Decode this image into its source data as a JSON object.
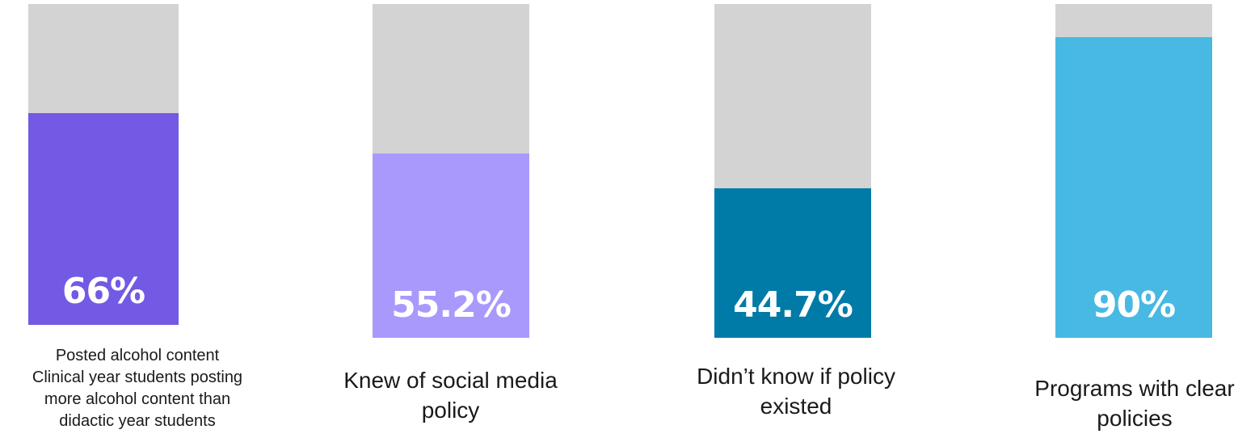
{
  "chart_data": {
    "type": "bar",
    "ylim": [
      0,
      100
    ],
    "bars": [
      {
        "value": 66,
        "label": "66%",
        "caption": "Posted alcohol content\nClinical year students posting\nmore alcohol content than\ndidactic year students",
        "color": "#7359e3"
      },
      {
        "value": 55.2,
        "label": "55.2%",
        "caption": "Knew of social media\npolicy",
        "color": "#a999fd"
      },
      {
        "value": 44.7,
        "label": "44.7%",
        "caption": "Didn’t know if policy\nexisted",
        "color": "#007ba8"
      },
      {
        "value": 90,
        "label": "90%",
        "caption": "Programs with clear\npolicies",
        "color": "#47b9e3"
      }
    ],
    "track_color": "#d3d3d3"
  }
}
